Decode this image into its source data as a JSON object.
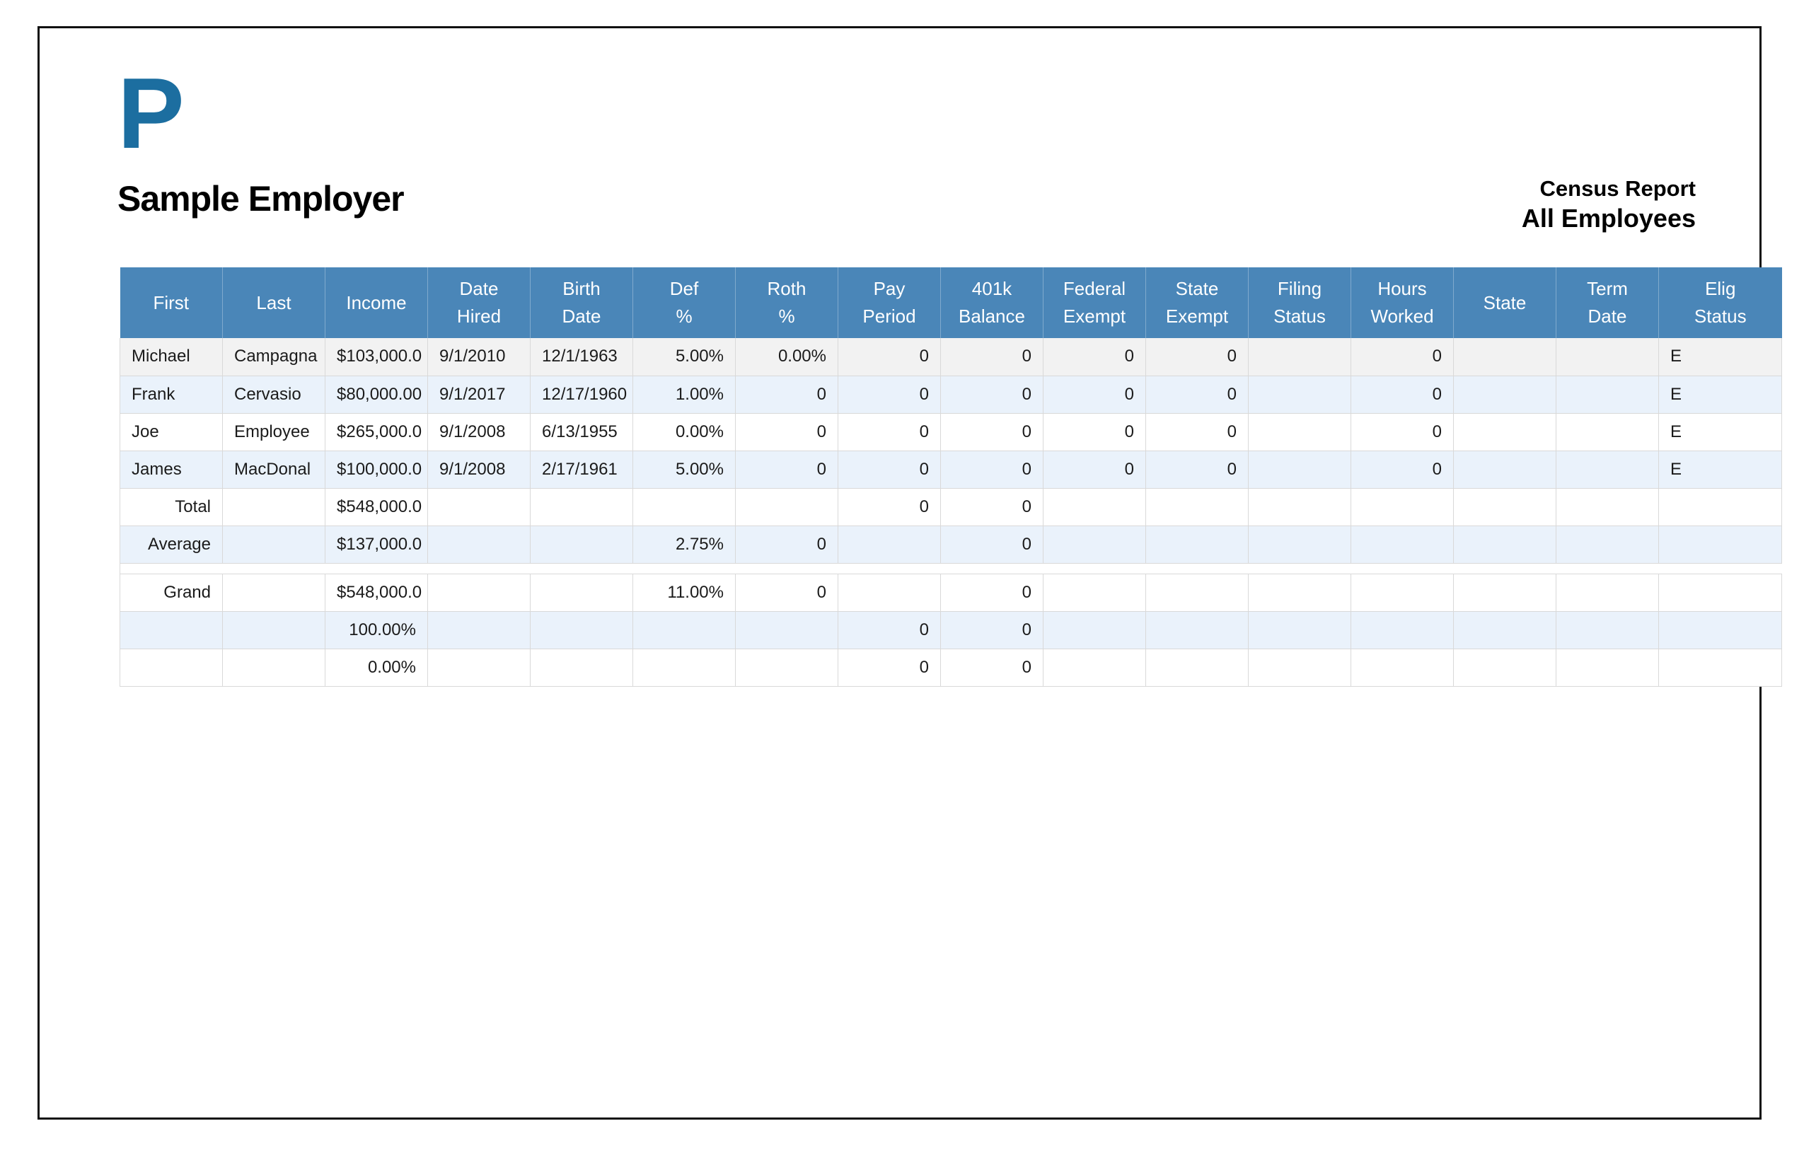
{
  "page": {
    "logo": "P",
    "company": "Sample Employer",
    "report_title": "Census Report",
    "report_subtitle": "All Employees"
  },
  "colors": {
    "header_bg": "#4A86B8",
    "logo_blue": "#1C6EA0",
    "row_gray": "#F2F2F2",
    "row_blue": "#EAF2FB",
    "row_white": "#FFFFFF",
    "grid_line": "#D9D9D9",
    "text_dark": "#1B1B1B"
  },
  "table": {
    "columns": [
      {
        "label": "First"
      },
      {
        "label": "Last"
      },
      {
        "label": "Income"
      },
      {
        "label": "Date\nHired"
      },
      {
        "label": "Birth\nDate"
      },
      {
        "label": "Def\n%"
      },
      {
        "label": "Roth\n%"
      },
      {
        "label": "Pay\nPeriod"
      },
      {
        "label": "401k\nBalance"
      },
      {
        "label": "Federal\nExempt"
      },
      {
        "label": "State\nExempt"
      },
      {
        "label": "Filing\nStatus"
      },
      {
        "label": "Hours\nWorked"
      },
      {
        "label": "State"
      },
      {
        "label": "Term\nDate"
      },
      {
        "label": "Elig\nStatus"
      }
    ],
    "rows": [
      {
        "shade": "gray",
        "cells": [
          "Michael",
          "Campagna",
          "$103,000.0",
          "9/1/2010",
          "12/1/1963",
          "5.00%",
          "0.00%",
          "0",
          "0",
          "0",
          "0",
          "",
          "0",
          "",
          "",
          "E"
        ]
      },
      {
        "shade": "blue",
        "cells": [
          "Frank",
          "Cervasio",
          "$80,000.00",
          "9/1/2017",
          "12/17/1960",
          "1.00%",
          "0",
          "0",
          "0",
          "0",
          "0",
          "",
          "0",
          "",
          "",
          "E"
        ]
      },
      {
        "shade": "white",
        "cells": [
          "Joe",
          "Employee",
          "$265,000.0",
          "9/1/2008",
          "6/13/1955",
          "0.00%",
          "0",
          "0",
          "0",
          "0",
          "0",
          "",
          "0",
          "",
          "",
          "E"
        ]
      },
      {
        "shade": "blue",
        "cells": [
          "James",
          "MacDonal",
          "$100,000.0",
          "9/1/2008",
          "2/17/1961",
          "5.00%",
          "0",
          "0",
          "0",
          "0",
          "0",
          "",
          "0",
          "",
          "",
          "E"
        ]
      },
      {
        "shade": "white",
        "label_right": true,
        "cells": [
          "Total",
          "",
          "$548,000.0",
          "",
          "",
          "",
          "",
          "0",
          "0",
          "",
          "",
          "",
          "",
          "",
          "",
          ""
        ]
      },
      {
        "shade": "blue",
        "label_right": true,
        "cells": [
          "Average",
          "",
          "$137,000.0",
          "",
          "",
          "2.75%",
          "0",
          "",
          "0",
          "",
          "",
          "",
          "",
          "",
          "",
          ""
        ]
      },
      {
        "shade": "white",
        "spacer": true,
        "cells": [
          "",
          "",
          "",
          "",
          "",
          "",
          "",
          "",
          "",
          "",
          "",
          "",
          "",
          "",
          "",
          ""
        ]
      },
      {
        "shade": "white",
        "label_right": true,
        "cells": [
          "Grand",
          "",
          "$548,000.0",
          "",
          "",
          "11.00%",
          "0",
          "",
          "0",
          "",
          "",
          "",
          "",
          "",
          "",
          ""
        ]
      },
      {
        "shade": "blue",
        "cells": [
          "",
          "",
          "100.00%",
          "",
          "",
          "",
          "",
          "0",
          "0",
          "",
          "",
          "",
          "",
          "",
          "",
          ""
        ]
      },
      {
        "shade": "white",
        "cells": [
          "",
          "",
          "0.00%",
          "",
          "",
          "",
          "",
          "0",
          "0",
          "",
          "",
          "",
          "",
          "",
          "",
          ""
        ]
      }
    ]
  }
}
